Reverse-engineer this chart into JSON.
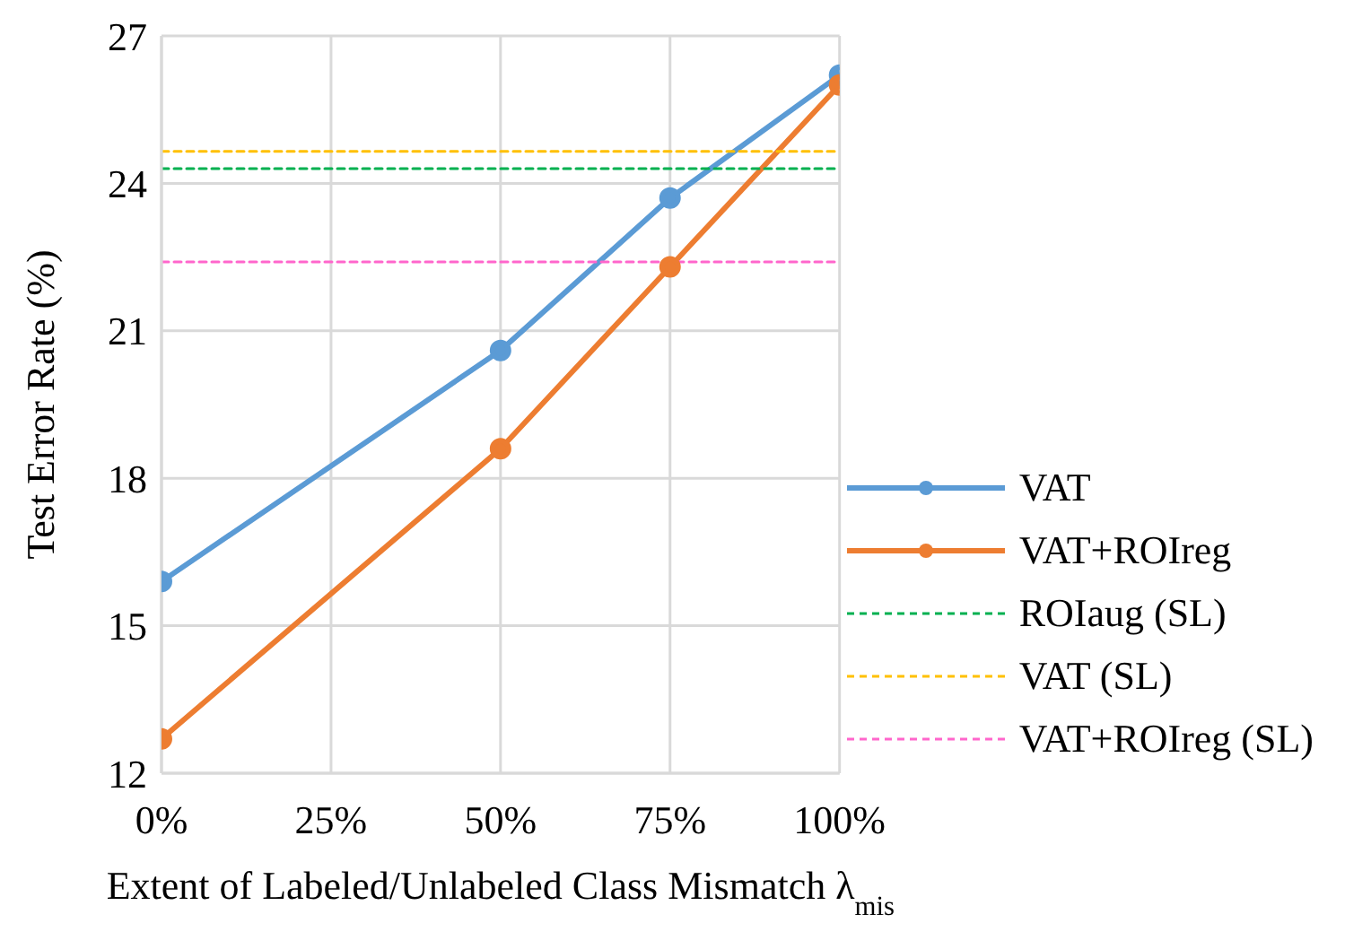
{
  "chart_data": {
    "type": "line",
    "xlabel": "Extent of Labeled/Unlabeled Class Mismatch λ$_{mis}$",
    "ylabel": "Test Error Rate (%)",
    "xlim": [
      0,
      100
    ],
    "xticks": [
      {
        "value": 0,
        "label": "0%"
      },
      {
        "value": 25,
        "label": "25%"
      },
      {
        "value": 50,
        "label": "50%"
      },
      {
        "value": 75,
        "label": "75%"
      },
      {
        "value": 100,
        "label": "100%"
      }
    ],
    "ylim": [
      12,
      27
    ],
    "yticks": [
      12,
      15,
      18,
      21,
      24,
      27
    ],
    "grid": true,
    "legend": "bottom right",
    "series": [
      {
        "name": "VAT",
        "color": "#5b9bd5",
        "x": [
          0,
          50,
          75,
          100
        ],
        "values": [
          15.9,
          20.6,
          23.7,
          26.2
        ],
        "marker": "circle",
        "line_style": "solid"
      },
      {
        "name": "VAT+ROIreg",
        "color": "#ed7d31",
        "x": [
          0,
          50,
          75,
          100
        ],
        "values": [
          12.7,
          18.6,
          22.3,
          26.0
        ],
        "marker": "circle",
        "line_style": "solid"
      },
      {
        "name": "ROIaug (SL)",
        "color": "#00b050",
        "x": [
          0,
          100
        ],
        "values": [
          24.3,
          24.3
        ],
        "marker": "none",
        "line_style": "dashed"
      },
      {
        "name": "VAT (SL)",
        "color": "#ffc000",
        "x": [
          0,
          100
        ],
        "values": [
          24.65,
          24.65
        ],
        "marker": "none",
        "line_style": "dashed"
      },
      {
        "name": "VAT+ROIreg (SL)",
        "color": "#ff66cc",
        "x": [
          0,
          100
        ],
        "values": [
          22.4,
          22.4
        ],
        "marker": "none",
        "line_style": "dashed"
      }
    ]
  }
}
